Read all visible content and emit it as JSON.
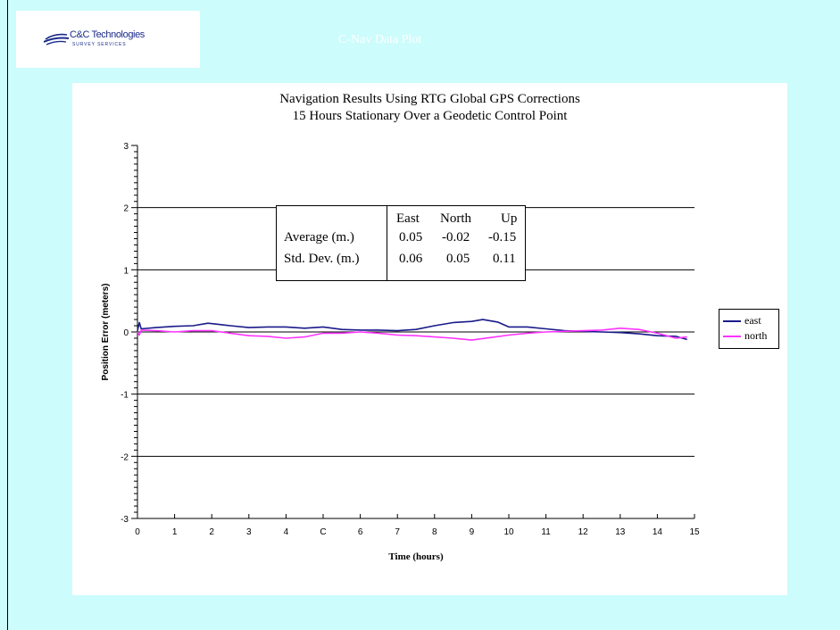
{
  "header": {
    "logo_name": "C&C Technologies",
    "logo_subtitle": "SURVEY SERVICES",
    "title": "C-Nav Data Plot"
  },
  "colors": {
    "background": "#ccfcfc",
    "header_title": "#ffffff",
    "east": "#1a1a8a",
    "north": "#ff33ff",
    "logo": "#1a2a8a"
  },
  "stats_table": {
    "columns": [
      "East",
      "North",
      "Up"
    ],
    "rows": [
      {
        "label": "Average (m.)",
        "values": [
          "0.05",
          "-0.02",
          "-0.15"
        ]
      },
      {
        "label": "Std. Dev. (m.)",
        "values": [
          "0.06",
          "0.05",
          "0.11"
        ]
      }
    ]
  },
  "chart_data": {
    "type": "line",
    "title_line1": "Navigation Results Using RTG Global GPS Corrections",
    "title_line2": "15 Hours Stationary Over a Geodetic Control Point",
    "xlabel": "Time (hours)",
    "ylabel": "Position Error (meters)",
    "xlim": [
      0,
      15
    ],
    "ylim": [
      -3,
      3
    ],
    "x_ticks": [
      0,
      1,
      2,
      3,
      4,
      5,
      6,
      7,
      8,
      9,
      10,
      11,
      12,
      13,
      14,
      15
    ],
    "x_tick_labels": [
      "0",
      "1",
      "2",
      "3",
      "4",
      "C",
      "6",
      "7",
      "8",
      "9",
      "10",
      "11",
      "12",
      "13",
      "14",
      "15"
    ],
    "y_ticks": [
      -3,
      -2,
      -1,
      0,
      1,
      2,
      3
    ],
    "y_tick_labels": [
      "-3",
      "-2",
      "-1",
      "0",
      "1",
      "2",
      "3"
    ],
    "y_gridlines": [
      -2,
      -1,
      0,
      1,
      2
    ],
    "legend_position": "right",
    "series": [
      {
        "name": "east",
        "color": "#1a1a8a",
        "x": [
          0,
          0.05,
          0.1,
          0.5,
          1,
          1.5,
          1.9,
          2.2,
          2.5,
          3,
          3.5,
          4,
          4.5,
          5,
          5.5,
          6,
          6.5,
          7,
          7.5,
          8,
          8.5,
          9,
          9.3,
          9.7,
          10,
          10.5,
          11,
          11.5,
          12,
          12.5,
          13,
          13.5,
          14,
          14.5,
          14.8
        ],
        "y": [
          0.02,
          0.15,
          0.05,
          0.07,
          0.09,
          0.1,
          0.14,
          0.12,
          0.1,
          0.07,
          0.08,
          0.08,
          0.06,
          0.08,
          0.04,
          0.03,
          0.03,
          0.02,
          0.04,
          0.1,
          0.15,
          0.17,
          0.2,
          0.16,
          0.08,
          0.08,
          0.05,
          0.02,
          0.01,
          0.0,
          -0.01,
          -0.03,
          -0.06,
          -0.07,
          -0.12
        ]
      },
      {
        "name": "north",
        "color": "#ff33ff",
        "x": [
          0,
          0.05,
          0.1,
          0.5,
          1,
          1.5,
          2,
          2.5,
          3,
          3.5,
          4,
          4.5,
          5,
          5.5,
          6,
          6.5,
          7,
          7.5,
          8,
          8.5,
          9,
          9.5,
          10,
          10.5,
          11,
          11.5,
          12,
          12.5,
          13,
          13.5,
          14,
          14.5,
          14.8
        ],
        "y": [
          0.0,
          -0.05,
          0.03,
          0.02,
          0.0,
          0.02,
          0.02,
          -0.02,
          -0.06,
          -0.07,
          -0.1,
          -0.08,
          -0.02,
          -0.02,
          0.0,
          -0.02,
          -0.05,
          -0.06,
          -0.08,
          -0.1,
          -0.13,
          -0.09,
          -0.05,
          -0.02,
          0.0,
          0.01,
          0.02,
          0.03,
          0.06,
          0.04,
          -0.02,
          -0.1,
          -0.08
        ]
      }
    ]
  }
}
